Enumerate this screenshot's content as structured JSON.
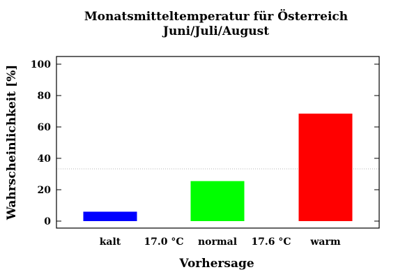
{
  "chart_data": {
    "type": "bar",
    "title": "Monatsmitteltemperatur für Österreich",
    "subtitle": "Juni/Juli/August",
    "xlabel": "Vorhersage",
    "ylabel": "Wahrscheinlichkeit [%]",
    "ylim": [
      0,
      100
    ],
    "yticks": [
      "0",
      "20",
      "40",
      "60",
      "80",
      "100"
    ],
    "categories": [
      "kalt",
      "normal",
      "warm"
    ],
    "values": [
      6,
      25.5,
      68.5
    ],
    "colors": [
      "#0000ff",
      "#00ff00",
      "#ff0000"
    ],
    "threshold_labels": [
      "17.0 °C",
      "17.6 °C"
    ],
    "reference_line": 33.3,
    "grid": false
  }
}
